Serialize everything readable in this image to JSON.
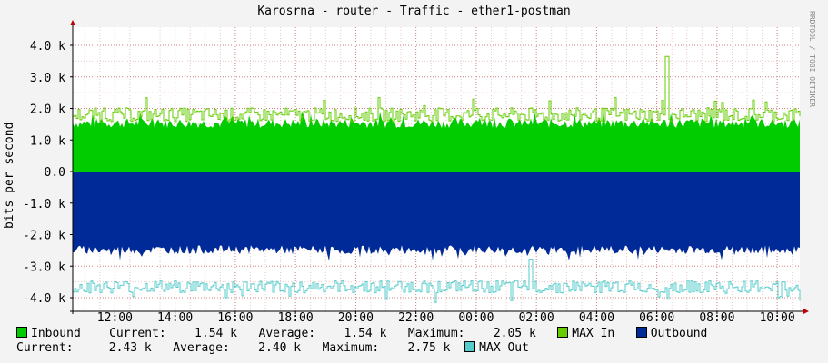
{
  "chart_data": {
    "type": "area",
    "title": "Karosrna - router - Traffic - ether1-postman",
    "ylabel": "bits per second",
    "vendor_text": "RRDTOOL / TOBI OETIKER",
    "ylim": [
      -4300,
      4300
    ],
    "yticks": [
      4000,
      3000,
      2000,
      1000,
      0,
      -1000,
      -2000,
      -3000,
      -4000
    ],
    "ytick_labels": [
      "4.0 k",
      "3.0 k",
      "2.0 k",
      "1.0 k",
      "0.0",
      "-1.0 k",
      "-2.0 k",
      "-3.0 k",
      "-4.0 k"
    ],
    "xlim": [
      10.6,
      34.75
    ],
    "xticks": [
      12,
      14,
      16,
      18,
      20,
      22,
      24,
      26,
      28,
      30,
      32,
      34
    ],
    "xtick_labels": [
      "12:00",
      "14:00",
      "16:00",
      "18:00",
      "20:00",
      "22:00",
      "00:00",
      "02:00",
      "04:00",
      "06:00",
      "08:00",
      "10:00"
    ],
    "grid": true,
    "series": [
      {
        "name": "Inbound",
        "color": "#00cc00",
        "style": "area",
        "base": 1540,
        "noise": 160
      },
      {
        "name": "MAX In",
        "color": "#66cc00",
        "style": "line",
        "base": 1800,
        "noise": 220,
        "spike_at": 30.3,
        "spike_value": 3650
      },
      {
        "name": "Outbound",
        "color": "#002a97",
        "style": "area",
        "base": -2480,
        "noise": 140
      },
      {
        "name": "MAX Out",
        "color": "#55cccc",
        "style": "line",
        "base": -3650,
        "noise": 200,
        "spike_at": 25.8,
        "spike_value": -2780
      }
    ],
    "legend": {
      "row1": {
        "inbound": "Inbound",
        "current_label": "Current:",
        "current_value": "1.54 k",
        "average_label": "Average:",
        "average_value": "1.54 k",
        "maximum_label": "Maximum:",
        "maximum_value": "2.05 k",
        "max_in": "MAX In",
        "outbound": "Outbound"
      },
      "row2": {
        "current_label": "Current:",
        "current_value": "2.43 k",
        "average_label": "Average:",
        "average_value": "2.40 k",
        "maximum_label": "Maximum:",
        "maximum_value": "2.75 k",
        "max_out": "MAX Out"
      }
    }
  }
}
